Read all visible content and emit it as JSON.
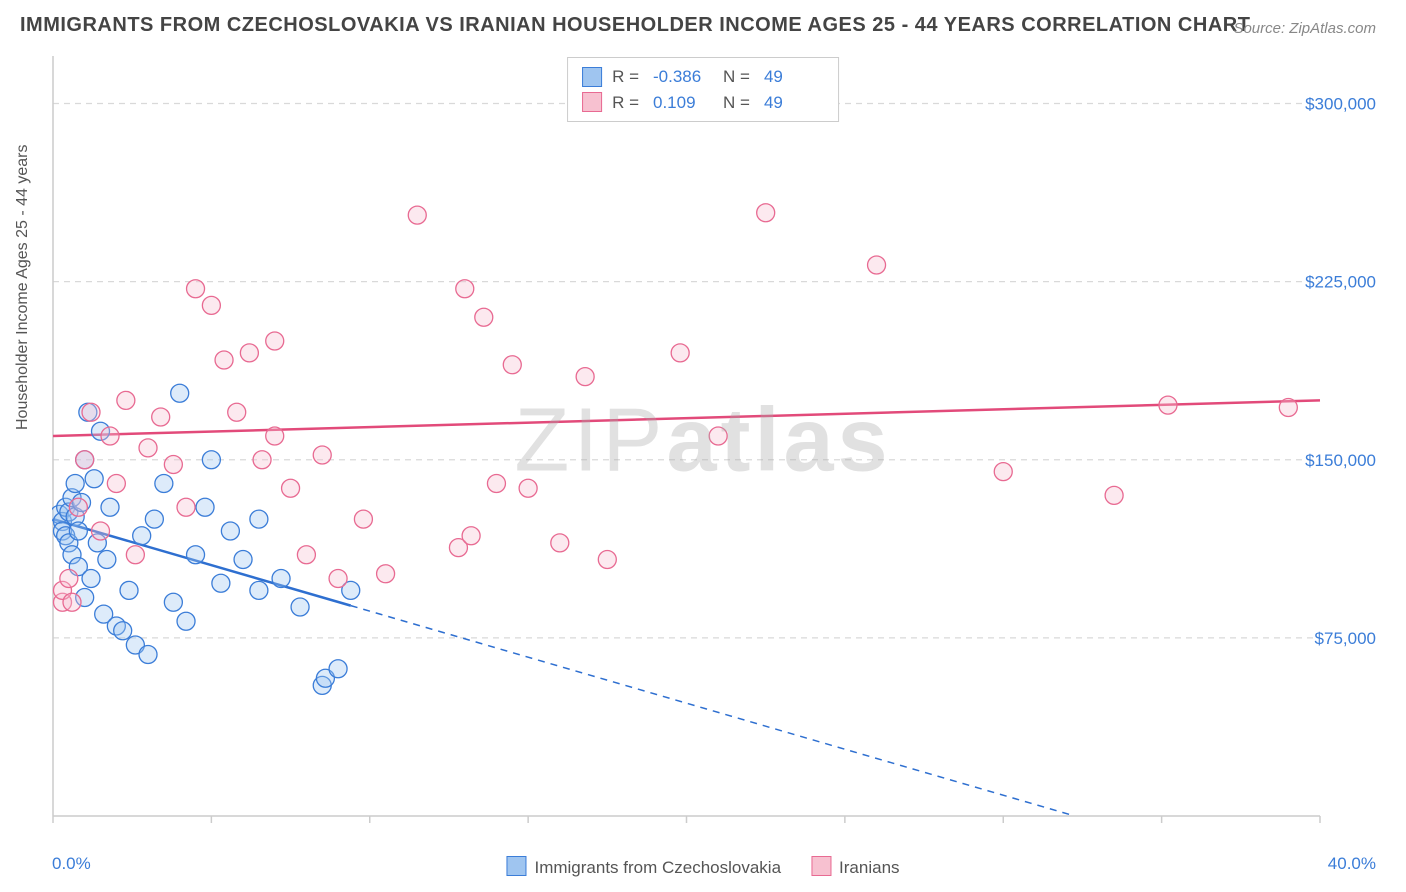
{
  "title": "IMMIGRANTS FROM CZECHOSLOVAKIA VS IRANIAN HOUSEHOLDER INCOME AGES 25 - 44 YEARS CORRELATION CHART",
  "source": "Source: ZipAtlas.com",
  "ylabel": "Householder Income Ages 25 - 44 years",
  "watermark_thin": "ZIP",
  "watermark_bold": "atlas",
  "chart": {
    "type": "scatter",
    "background_color": "#ffffff",
    "grid_color": "#d9d9d9",
    "grid_dash": "6,5",
    "axis_color": "#cccccc",
    "tick_color": "#cccccc",
    "xlim": [
      0,
      40
    ],
    "ylim": [
      0,
      320000
    ],
    "x_tick_step": 5,
    "y_gridlines": [
      75000,
      150000,
      225000,
      300000
    ],
    "y_tick_labels": [
      "$75,000",
      "$150,000",
      "$225,000",
      "$300,000"
    ],
    "y_tick_color": "#3b7dd8",
    "y_tick_fontsize": 17,
    "x_min_label": "0.0%",
    "x_max_label": "40.0%",
    "x_label_color": "#3b7dd8",
    "x_label_fontsize": 17,
    "marker_radius": 9,
    "marker_fill_opacity": 0.35,
    "marker_stroke_width": 1.3,
    "title_fontsize": 20,
    "title_color": "#444444",
    "label_fontsize": 16,
    "label_color": "#555555"
  },
  "legend_top": {
    "border_color": "#cccccc",
    "rows": [
      {
        "swatch_fill": "#9fc5f0",
        "swatch_stroke": "#3b7dd8",
        "r_label": "R =",
        "r": "-0.386",
        "n_label": "N =",
        "n": "49"
      },
      {
        "swatch_fill": "#f7c1d0",
        "swatch_stroke": "#e86a92",
        "r_label": "R =",
        "r": " 0.109",
        "n_label": "N =",
        "n": "49"
      }
    ]
  },
  "legend_bottom": {
    "items": [
      {
        "swatch_fill": "#9fc5f0",
        "swatch_stroke": "#3b7dd8",
        "label": "Immigrants from Czechoslovakia"
      },
      {
        "swatch_fill": "#f7c1d0",
        "swatch_stroke": "#e86a92",
        "label": "Iranians"
      }
    ]
  },
  "series": [
    {
      "name": "Immigrants from Czechoslovakia",
      "marker_fill": "#9fc5f0",
      "marker_stroke": "#3b7dd8",
      "trend_stroke": "#2e6fd0",
      "trend_width": 2.5,
      "trend_dash_after_xmax_data": true,
      "trend_dash_pattern": "7,6",
      "trend_y_at_x0": 125000,
      "trend_y_at_x40": -30000,
      "data_xmax": 9.4,
      "points": [
        [
          0.2,
          127000
        ],
        [
          0.3,
          124000
        ],
        [
          0.3,
          120000
        ],
        [
          0.4,
          130000
        ],
        [
          0.4,
          118000
        ],
        [
          0.5,
          128000
        ],
        [
          0.5,
          115000
        ],
        [
          0.6,
          134000
        ],
        [
          0.6,
          110000
        ],
        [
          0.7,
          126000
        ],
        [
          0.7,
          140000
        ],
        [
          0.8,
          120000
        ],
        [
          0.8,
          105000
        ],
        [
          0.9,
          132000
        ],
        [
          1.0,
          150000
        ],
        [
          1.0,
          92000
        ],
        [
          1.1,
          170000
        ],
        [
          1.2,
          100000
        ],
        [
          1.3,
          142000
        ],
        [
          1.4,
          115000
        ],
        [
          1.5,
          162000
        ],
        [
          1.6,
          85000
        ],
        [
          1.7,
          108000
        ],
        [
          1.8,
          130000
        ],
        [
          2.0,
          80000
        ],
        [
          2.2,
          78000
        ],
        [
          2.4,
          95000
        ],
        [
          2.6,
          72000
        ],
        [
          2.8,
          118000
        ],
        [
          3.0,
          68000
        ],
        [
          3.2,
          125000
        ],
        [
          3.5,
          140000
        ],
        [
          3.8,
          90000
        ],
        [
          4.0,
          178000
        ],
        [
          4.2,
          82000
        ],
        [
          4.5,
          110000
        ],
        [
          4.8,
          130000
        ],
        [
          5.0,
          150000
        ],
        [
          5.3,
          98000
        ],
        [
          5.6,
          120000
        ],
        [
          6.0,
          108000
        ],
        [
          6.5,
          95000
        ],
        [
          6.5,
          125000
        ],
        [
          7.2,
          100000
        ],
        [
          7.8,
          88000
        ],
        [
          8.5,
          55000
        ],
        [
          8.6,
          58000
        ],
        [
          9.0,
          62000
        ],
        [
          9.4,
          95000
        ]
      ]
    },
    {
      "name": "Iranians",
      "marker_fill": "#f7c1d0",
      "marker_stroke": "#e86a92",
      "trend_stroke": "#e24a7a",
      "trend_width": 2.5,
      "trend_dash_after_xmax_data": false,
      "trend_dash_pattern": "",
      "trend_y_at_x0": 160000,
      "trend_y_at_x40": 175000,
      "data_xmax": 40,
      "points": [
        [
          0.3,
          90000
        ],
        [
          0.3,
          95000
        ],
        [
          0.5,
          100000
        ],
        [
          0.6,
          90000
        ],
        [
          0.8,
          130000
        ],
        [
          1.0,
          150000
        ],
        [
          1.2,
          170000
        ],
        [
          1.5,
          120000
        ],
        [
          1.8,
          160000
        ],
        [
          2.0,
          140000
        ],
        [
          2.3,
          175000
        ],
        [
          2.6,
          110000
        ],
        [
          3.0,
          155000
        ],
        [
          3.4,
          168000
        ],
        [
          3.8,
          148000
        ],
        [
          4.2,
          130000
        ],
        [
          4.5,
          222000
        ],
        [
          5.0,
          215000
        ],
        [
          5.4,
          192000
        ],
        [
          5.8,
          170000
        ],
        [
          6.2,
          195000
        ],
        [
          6.6,
          150000
        ],
        [
          7.0,
          200000
        ],
        [
          7.0,
          160000
        ],
        [
          7.5,
          138000
        ],
        [
          8.0,
          110000
        ],
        [
          8.5,
          152000
        ],
        [
          9.0,
          100000
        ],
        [
          9.8,
          125000
        ],
        [
          10.5,
          102000
        ],
        [
          11.5,
          253000
        ],
        [
          12.8,
          113000
        ],
        [
          13.0,
          222000
        ],
        [
          13.2,
          118000
        ],
        [
          13.6,
          210000
        ],
        [
          14.0,
          140000
        ],
        [
          14.5,
          190000
        ],
        [
          15.0,
          138000
        ],
        [
          16.0,
          115000
        ],
        [
          16.8,
          185000
        ],
        [
          17.5,
          108000
        ],
        [
          19.8,
          195000
        ],
        [
          21.0,
          160000
        ],
        [
          22.5,
          254000
        ],
        [
          26.0,
          232000
        ],
        [
          30.0,
          145000
        ],
        [
          33.5,
          135000
        ],
        [
          35.2,
          173000
        ],
        [
          39.0,
          172000
        ]
      ]
    }
  ]
}
